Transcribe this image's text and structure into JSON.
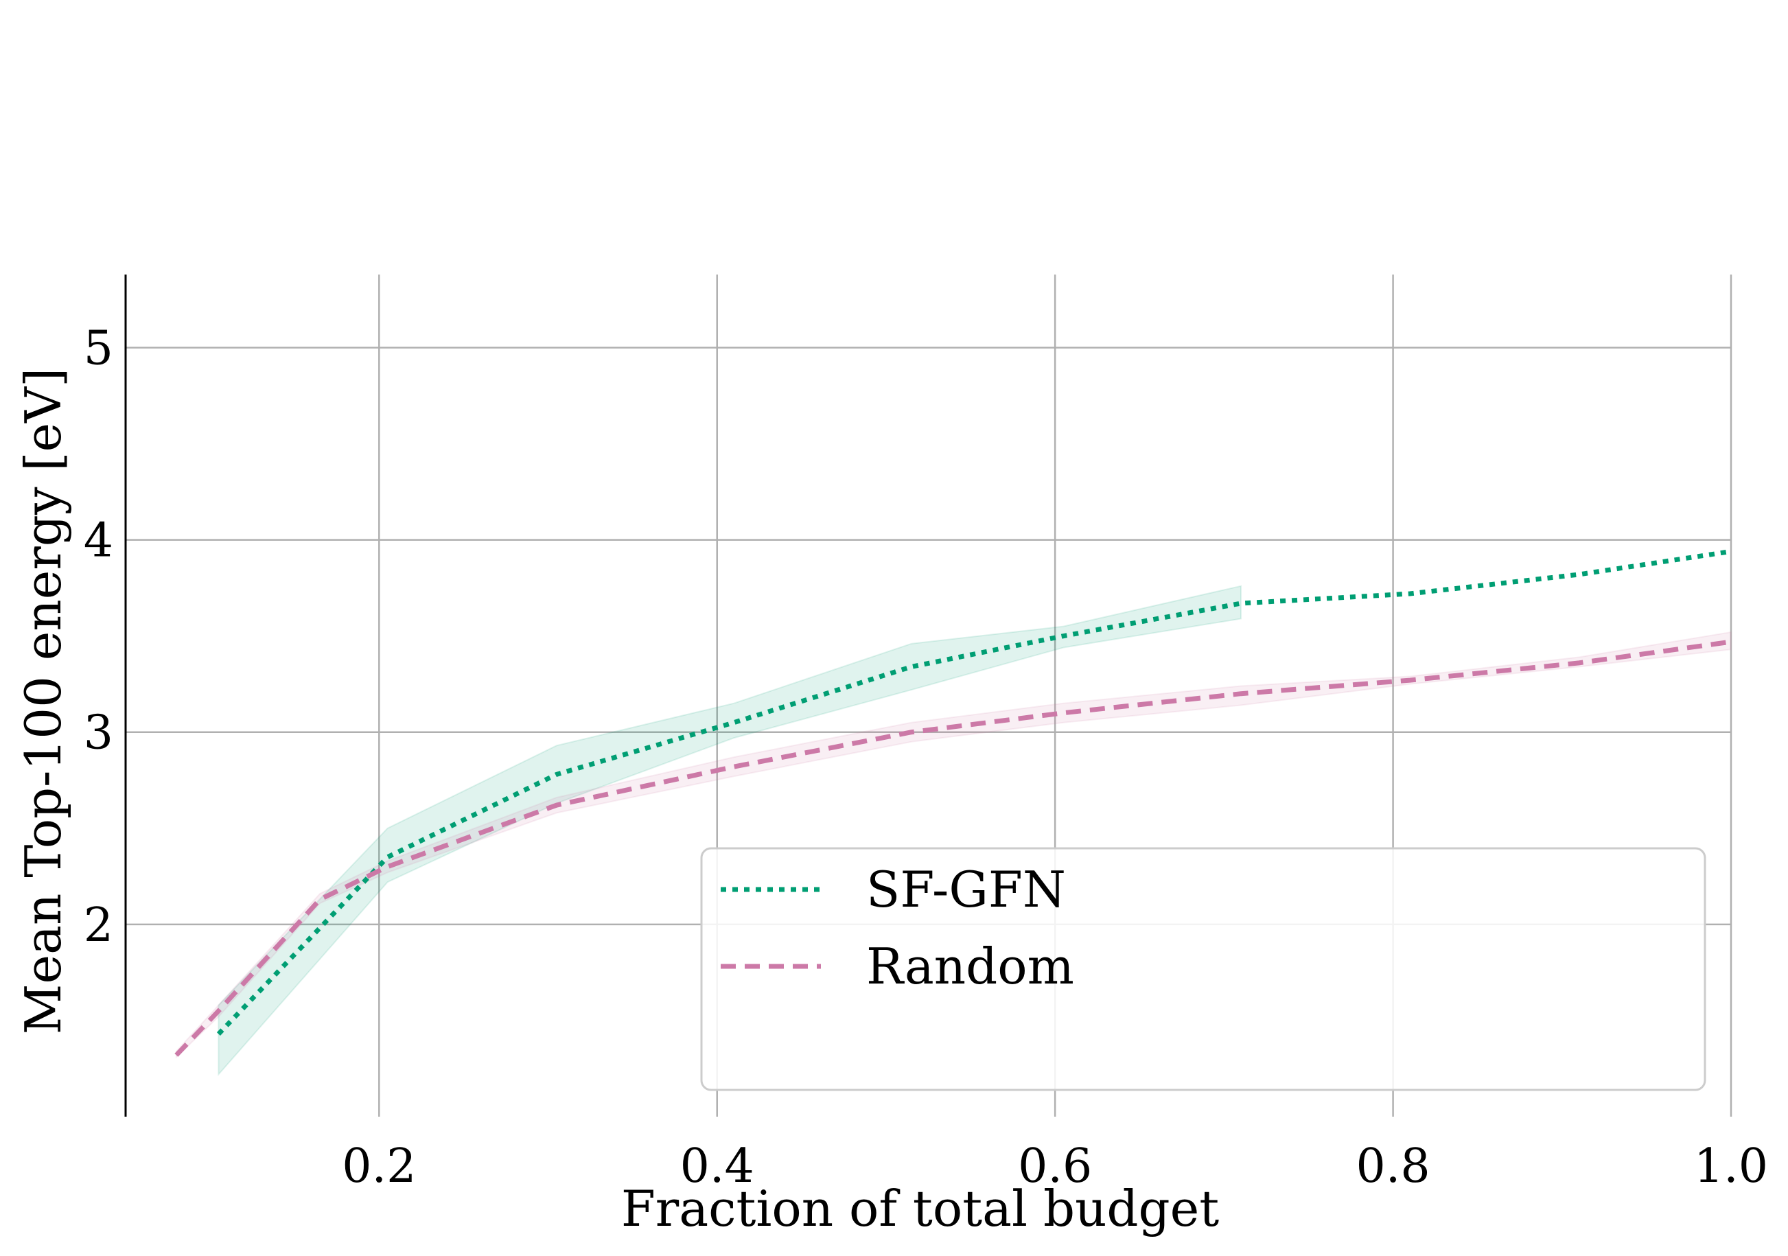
{
  "chart_data": {
    "type": "line",
    "title": "",
    "xlabel": "Fraction of total budget",
    "ylabel": "Mean Top-100 energy [eV]",
    "xlim": [
      0.05,
      1.0
    ],
    "ylim": [
      1.0,
      5.38
    ],
    "xticks": [
      0.2,
      0.4,
      0.6,
      0.8,
      1.0
    ],
    "xtick_labels": [
      "0.2",
      "0.4",
      "0.6",
      "0.8",
      "1.0"
    ],
    "yticks": [
      2,
      3,
      4,
      5
    ],
    "ytick_labels": [
      "2",
      "3",
      "4",
      "5"
    ],
    "grid": true,
    "legend_position": "lower-right",
    "series": [
      {
        "name": "SF-GFN",
        "color": "#009e73",
        "style": "dotted",
        "x": [
          0.105,
          0.205,
          0.305,
          0.41,
          0.515,
          0.605,
          0.71,
          0.81,
          0.91,
          1.0
        ],
        "y": [
          1.43,
          2.35,
          2.78,
          3.05,
          3.34,
          3.5,
          3.67,
          3.72,
          3.82,
          3.94
        ],
        "band_x": [
          0.105,
          0.205,
          0.305,
          0.41,
          0.515,
          0.605,
          0.71
        ],
        "band_lower": [
          1.22,
          2.22,
          2.63,
          2.97,
          3.22,
          3.44,
          3.59
        ],
        "band_upper": [
          1.58,
          2.5,
          2.93,
          3.15,
          3.46,
          3.55,
          3.76
        ]
      },
      {
        "name": "Random",
        "color": "#cc79a7",
        "style": "dashed",
        "x": [
          0.08,
          0.105,
          0.165,
          0.205,
          0.305,
          0.41,
          0.515,
          0.605,
          0.71,
          0.81,
          0.91,
          1.0
        ],
        "y": [
          1.32,
          1.55,
          2.13,
          2.3,
          2.62,
          2.82,
          3.0,
          3.1,
          3.2,
          3.27,
          3.36,
          3.47
        ],
        "band_x": [
          0.08,
          0.105,
          0.165,
          0.205,
          0.305,
          0.41,
          0.515,
          0.605,
          0.71,
          0.81,
          0.91,
          1.0
        ],
        "band_lower": [
          1.31,
          1.52,
          2.11,
          2.27,
          2.58,
          2.77,
          2.95,
          3.05,
          3.14,
          3.25,
          3.34,
          3.43
        ],
        "band_upper": [
          1.34,
          1.58,
          2.16,
          2.33,
          2.66,
          2.87,
          3.05,
          3.15,
          3.24,
          3.29,
          3.39,
          3.52
        ]
      }
    ]
  }
}
